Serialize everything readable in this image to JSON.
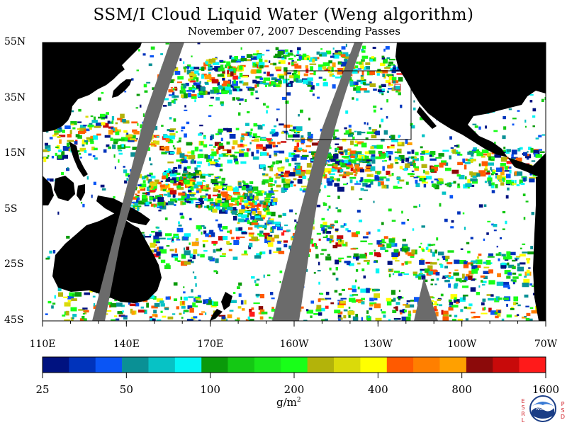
{
  "title": "SSM/I Cloud Liquid Water (Weng algorithm)",
  "subtitle": "November 07, 2007  Descending Passes",
  "y_axis_labels": [
    "55N",
    "35N",
    "15N",
    "5S",
    "25S",
    "45S"
  ],
  "x_axis_labels": [
    "110E",
    "140E",
    "170E",
    "160W",
    "130W",
    "100W",
    "70W"
  ],
  "colorbar": {
    "colors": [
      "#001280",
      "#0033bb",
      "#0a55f5",
      "#0a9095",
      "#07c2c5",
      "#05f5f5",
      "#0a9a0a",
      "#14c814",
      "#1ae61a",
      "#18ff18",
      "#b3b30a",
      "#dada0a",
      "#ffff00",
      "#ff5a00",
      "#ff7f00",
      "#ffa000",
      "#8c0a0a",
      "#c80a0a",
      "#ff1a1a"
    ],
    "tick_labels": [
      "25",
      "50",
      "100",
      "200",
      "400",
      "800",
      "1600"
    ]
  },
  "units": {
    "base": "g/m",
    "exponent": "2"
  },
  "logo": {
    "text": "NOAA",
    "left_letters": [
      "E",
      "S",
      "R",
      "L"
    ],
    "right_letters": [
      "P",
      "S",
      "D"
    ]
  },
  "colors": {
    "land": "#000000",
    "no_data": "#6b6b6b",
    "clear": "#ffffff"
  }
}
